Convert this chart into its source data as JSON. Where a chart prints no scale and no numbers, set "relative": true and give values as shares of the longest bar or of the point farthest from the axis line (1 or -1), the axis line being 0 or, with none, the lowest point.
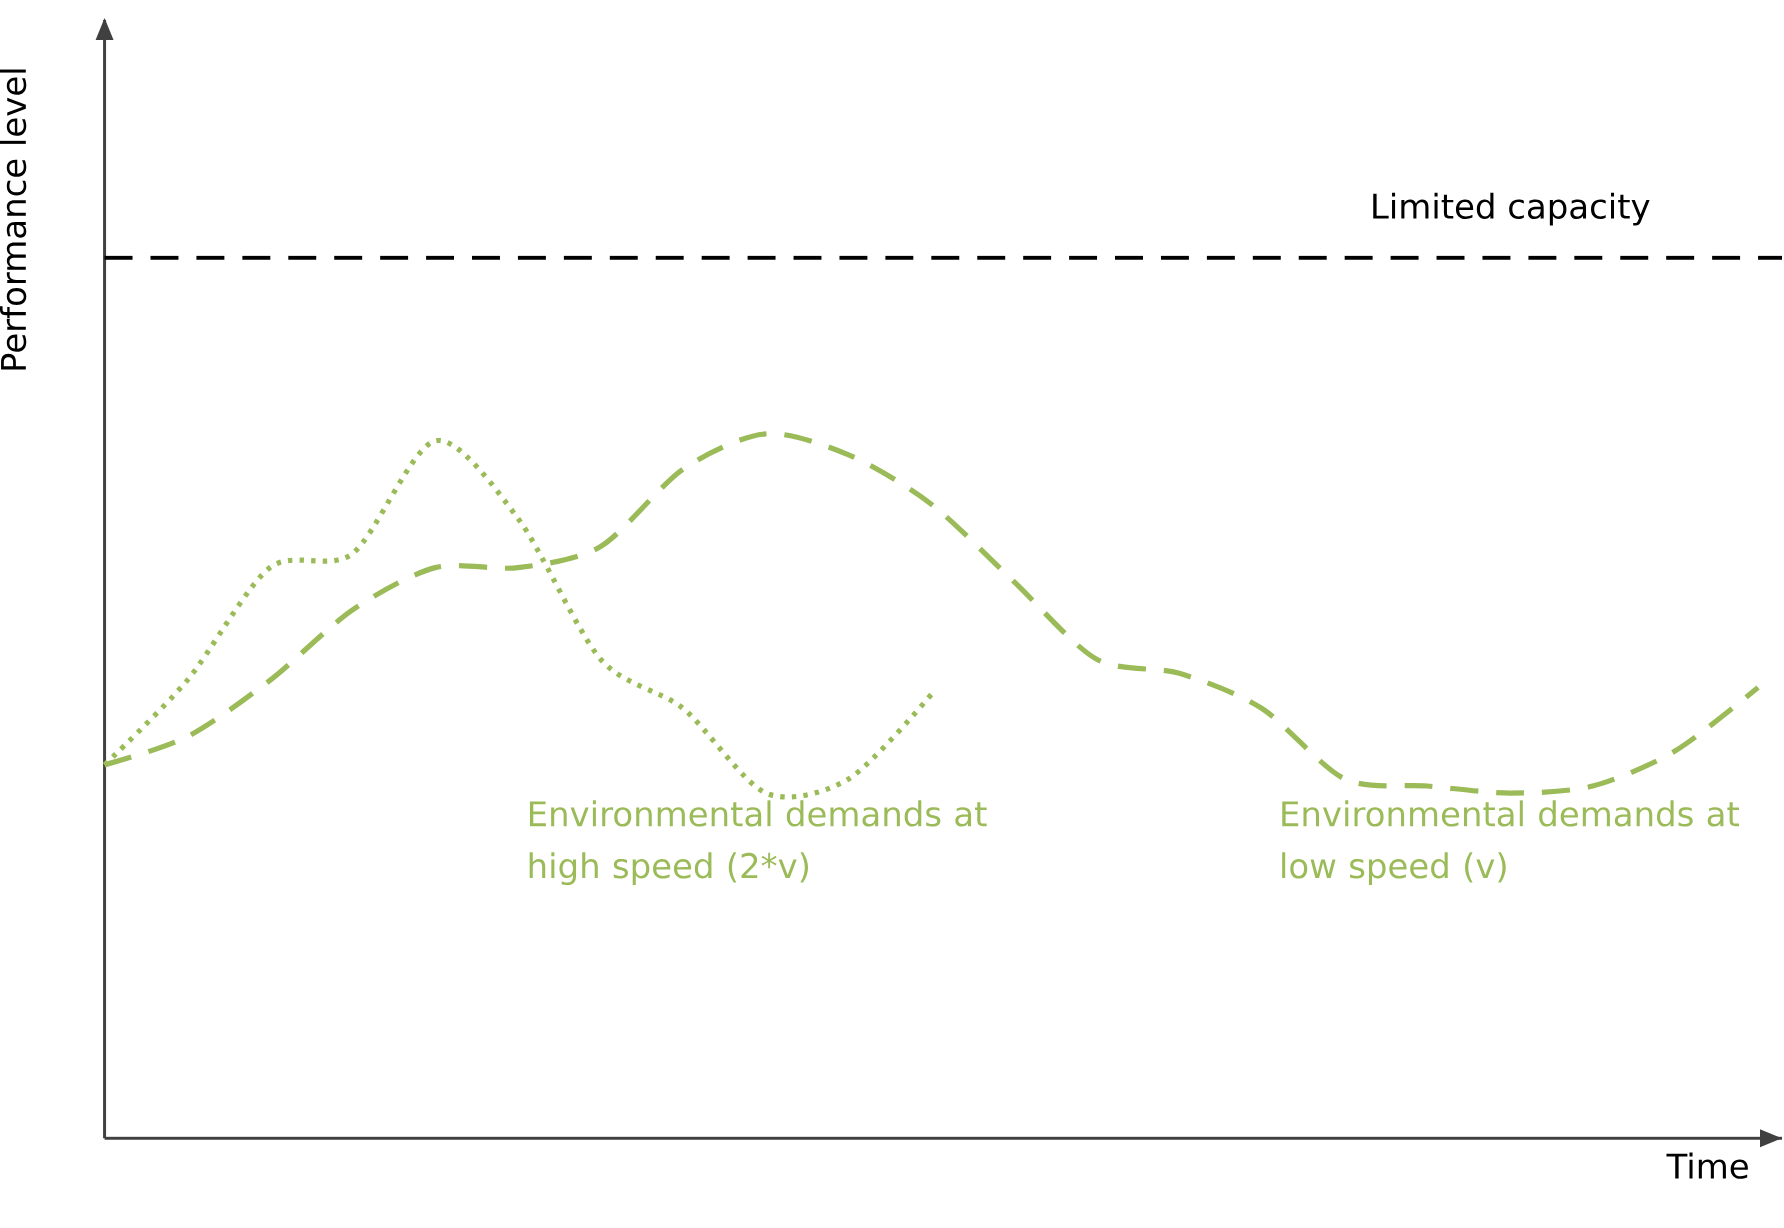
{
  "chart_data": {
    "type": "line",
    "relative": true,
    "xlabel": "Time",
    "ylabel": "Performance level",
    "categories": [
      null,
      null,
      null,
      null,
      null,
      null,
      null,
      null,
      null,
      null,
      null,
      null,
      null,
      null,
      null,
      null,
      null,
      null,
      null,
      null,
      null
    ],
    "series": [
      {
        "name": "Environmental demands at high speed (2*v)",
        "color": "#9bbb59",
        "line_style": "dotted",
        "values": [
          0.53,
          0.65,
          0.81,
          0.83,
          0.99,
          0.88,
          0.68,
          0.61,
          0.49,
          0.51,
          0.63,
          null,
          null,
          null,
          null,
          null,
          null,
          null,
          null,
          null,
          null
        ]
      },
      {
        "name": "Environmental demands at low speed (v)",
        "color": "#9bbb59",
        "line_style": "dashed",
        "values": [
          0.53,
          0.57,
          0.65,
          0.75,
          0.81,
          0.81,
          0.84,
          0.95,
          1.0,
          0.97,
          0.9,
          0.79,
          0.68,
          0.66,
          0.61,
          0.51,
          0.5,
          0.49,
          0.5,
          0.55,
          0.64
        ]
      }
    ],
    "ref_lines": [
      {
        "axis": "y",
        "value": 1.25,
        "label": "Limited capacity",
        "color": "#000000",
        "line_style": "dashed"
      }
    ],
    "legend": false,
    "marker": "none"
  }
}
